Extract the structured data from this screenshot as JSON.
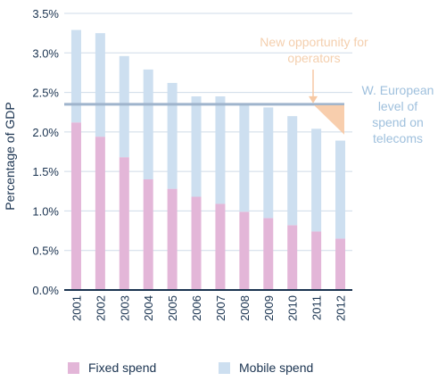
{
  "chart_data": {
    "type": "bar",
    "stacked": true,
    "categories": [
      "2001",
      "2002",
      "2003",
      "2004",
      "2005",
      "2006",
      "2007",
      "2008",
      "2009",
      "2010",
      "2011",
      "2012"
    ],
    "series": [
      {
        "name": "Fixed spend",
        "color": "#e3b6d8",
        "values": [
          2.12,
          1.94,
          1.68,
          1.4,
          1.28,
          1.18,
          1.09,
          0.99,
          0.91,
          0.82,
          0.74,
          0.65
        ]
      },
      {
        "name": "Mobile spend",
        "color": "#cddff0",
        "values": [
          1.17,
          1.31,
          1.28,
          1.39,
          1.34,
          1.27,
          1.36,
          1.37,
          1.4,
          1.38,
          1.3,
          1.24
        ]
      }
    ],
    "ylabel": "Percentage of GDP",
    "ylim": [
      0,
      3.5
    ],
    "yticks": [
      "0.0%",
      "0.5%",
      "1.0%",
      "1.5%",
      "2.0%",
      "2.5%",
      "3.0%",
      "3.5%"
    ],
    "grid": true,
    "reference_line": {
      "value": 2.35,
      "color": "#9fb4cc",
      "label_lines": [
        "W. European",
        "level of",
        "spend on",
        "telecoms"
      ]
    },
    "opportunity_annotation": {
      "label_lines": [
        "New opportunity for",
        "operators"
      ],
      "color": "#f7c9a4"
    },
    "legend": "bottom",
    "axis_color": "#1a3350"
  }
}
